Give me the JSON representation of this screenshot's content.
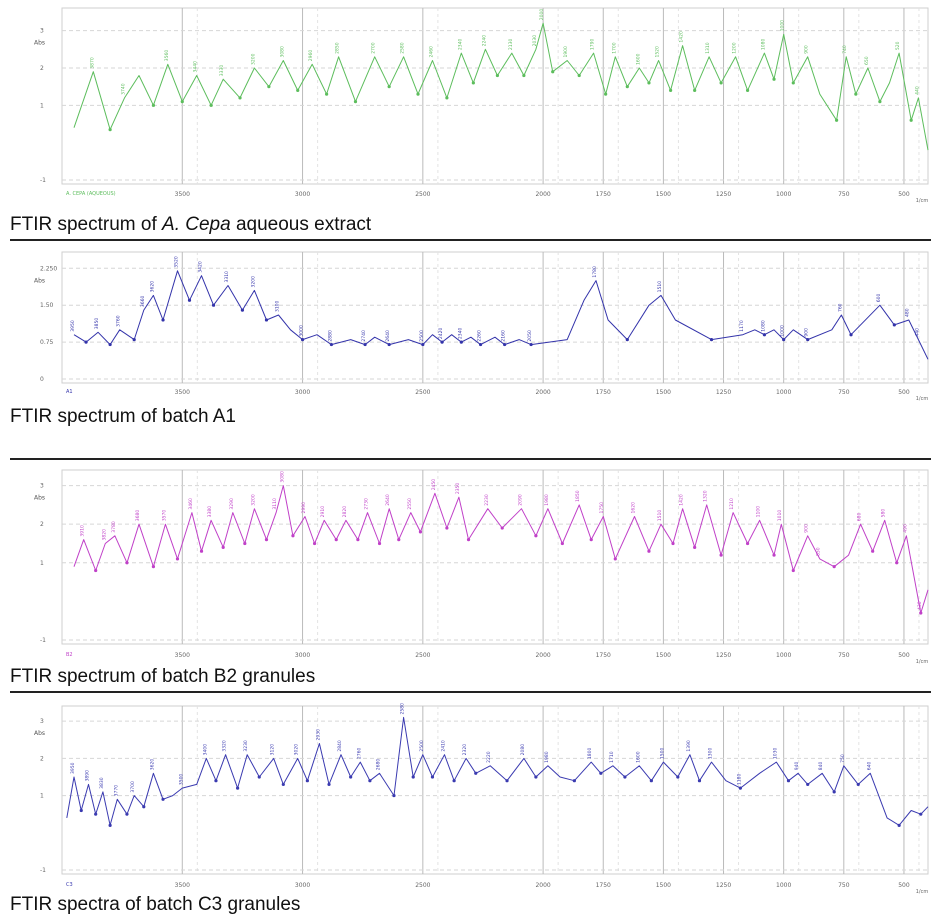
{
  "chart_data": [
    {
      "type": "line",
      "title": "",
      "caption": {
        "prefix": "FTIR spectrum of ",
        "species": "A. Cepa",
        "suffix": " aqueous extract"
      },
      "color": "#5cbd5c",
      "ylabel": "Abs",
      "yticks": [
        "3",
        "2",
        "1",
        "-1"
      ],
      "xticks": [
        "3500",
        "3000",
        "2500",
        "2000",
        "1750",
        "1500",
        "1250",
        "1000",
        "750",
        "500"
      ],
      "xunit": "1/cm",
      "legend": "A. CEPA (AQUEOUS)",
      "xlim": [
        4000,
        400
      ],
      "ylim": [
        -1,
        3.5
      ],
      "points": [
        [
          3950,
          0.4
        ],
        [
          3870,
          1.9
        ],
        [
          3800,
          0.35
        ],
        [
          3740,
          1.2
        ],
        [
          3680,
          1.8
        ],
        [
          3620,
          1.0
        ],
        [
          3560,
          2.1
        ],
        [
          3500,
          1.1
        ],
        [
          3440,
          1.8
        ],
        [
          3380,
          1.0
        ],
        [
          3330,
          1.7
        ],
        [
          3260,
          1.2
        ],
        [
          3200,
          2.0
        ],
        [
          3140,
          1.5
        ],
        [
          3080,
          2.2
        ],
        [
          3020,
          1.4
        ],
        [
          2960,
          2.1
        ],
        [
          2900,
          1.3
        ],
        [
          2850,
          2.3
        ],
        [
          2780,
          1.1
        ],
        [
          2700,
          2.3
        ],
        [
          2640,
          1.5
        ],
        [
          2580,
          2.3
        ],
        [
          2520,
          1.3
        ],
        [
          2460,
          2.2
        ],
        [
          2400,
          1.2
        ],
        [
          2340,
          2.4
        ],
        [
          2290,
          1.6
        ],
        [
          2240,
          2.5
        ],
        [
          2190,
          1.8
        ],
        [
          2130,
          2.4
        ],
        [
          2080,
          1.8
        ],
        [
          2030,
          2.5
        ],
        [
          2000,
          3.2
        ],
        [
          1960,
          1.9
        ],
        [
          1900,
          2.2
        ],
        [
          1850,
          1.8
        ],
        [
          1790,
          2.4
        ],
        [
          1740,
          1.3
        ],
        [
          1700,
          2.3
        ],
        [
          1650,
          1.5
        ],
        [
          1600,
          2.0
        ],
        [
          1560,
          1.6
        ],
        [
          1520,
          2.2
        ],
        [
          1470,
          1.4
        ],
        [
          1420,
          2.6
        ],
        [
          1370,
          1.4
        ],
        [
          1310,
          2.3
        ],
        [
          1260,
          1.6
        ],
        [
          1200,
          2.3
        ],
        [
          1150,
          1.4
        ],
        [
          1080,
          2.4
        ],
        [
          1040,
          1.7
        ],
        [
          1000,
          2.9
        ],
        [
          960,
          1.6
        ],
        [
          900,
          2.3
        ],
        [
          850,
          1.3
        ],
        [
          780,
          0.6
        ],
        [
          740,
          2.3
        ],
        [
          700,
          1.3
        ],
        [
          650,
          2.0
        ],
        [
          600,
          1.1
        ],
        [
          560,
          1.6
        ],
        [
          520,
          2.4
        ],
        [
          470,
          0.6
        ],
        [
          440,
          1.2
        ],
        [
          400,
          -0.2
        ]
      ],
      "labels": [
        3870,
        3740,
        3560,
        3440,
        3330,
        3200,
        3080,
        2960,
        2850,
        2700,
        2580,
        2460,
        2340,
        2240,
        2130,
        2030,
        2000,
        1900,
        1790,
        1700,
        1600,
        1520,
        1420,
        1310,
        1200,
        1080,
        1000,
        900,
        740,
        650,
        520,
        440
      ]
    },
    {
      "type": "line",
      "title": "",
      "caption": "FTIR spectrum of batch A1",
      "color": "#3333aa",
      "ylabel": "Abs",
      "yticks": [
        "2.250",
        "1.50",
        "0.75",
        "0"
      ],
      "xticks": [
        "3500",
        "3000",
        "2500",
        "2000",
        "1750",
        "1500",
        "1250",
        "1000",
        "750",
        "500"
      ],
      "xunit": "1/cm",
      "legend": "A1",
      "xlim": [
        4000,
        400
      ],
      "ylim": [
        0,
        2.5
      ],
      "points": [
        [
          3950,
          0.9
        ],
        [
          3900,
          0.75
        ],
        [
          3850,
          0.95
        ],
        [
          3800,
          0.7
        ],
        [
          3760,
          1.0
        ],
        [
          3700,
          0.8
        ],
        [
          3660,
          1.4
        ],
        [
          3620,
          1.7
        ],
        [
          3580,
          1.2
        ],
        [
          3520,
          2.2
        ],
        [
          3470,
          1.6
        ],
        [
          3420,
          2.1
        ],
        [
          3370,
          1.5
        ],
        [
          3310,
          1.9
        ],
        [
          3250,
          1.4
        ],
        [
          3200,
          1.8
        ],
        [
          3150,
          1.2
        ],
        [
          3100,
          1.3
        ],
        [
          3050,
          1.0
        ],
        [
          3000,
          0.8
        ],
        [
          2940,
          0.9
        ],
        [
          2880,
          0.7
        ],
        [
          2800,
          0.8
        ],
        [
          2740,
          0.7
        ],
        [
          2700,
          0.85
        ],
        [
          2640,
          0.7
        ],
        [
          2560,
          0.8
        ],
        [
          2500,
          0.7
        ],
        [
          2460,
          0.9
        ],
        [
          2420,
          0.75
        ],
        [
          2380,
          0.9
        ],
        [
          2340,
          0.75
        ],
        [
          2300,
          0.85
        ],
        [
          2260,
          0.7
        ],
        [
          2200,
          0.85
        ],
        [
          2160,
          0.7
        ],
        [
          2100,
          0.8
        ],
        [
          2050,
          0.7
        ],
        [
          1900,
          0.8
        ],
        [
          1830,
          1.6
        ],
        [
          1780,
          2.0
        ],
        [
          1730,
          1.2
        ],
        [
          1650,
          0.8
        ],
        [
          1560,
          1.5
        ],
        [
          1510,
          1.7
        ],
        [
          1450,
          1.2
        ],
        [
          1300,
          0.8
        ],
        [
          1170,
          0.9
        ],
        [
          1120,
          1.0
        ],
        [
          1080,
          0.9
        ],
        [
          1040,
          1.0
        ],
        [
          1000,
          0.8
        ],
        [
          960,
          1.0
        ],
        [
          900,
          0.8
        ],
        [
          800,
          1.0
        ],
        [
          760,
          1.3
        ],
        [
          720,
          0.9
        ],
        [
          600,
          1.5
        ],
        [
          540,
          1.1
        ],
        [
          480,
          1.2
        ],
        [
          440,
          0.8
        ],
        [
          400,
          0.4
        ]
      ],
      "labels": [
        3950,
        3850,
        3760,
        3660,
        3620,
        3520,
        3420,
        3310,
        3200,
        3100,
        3000,
        2880,
        2740,
        2640,
        2500,
        2420,
        2340,
        2260,
        2160,
        2050,
        1780,
        1510,
        1170,
        1080,
        1000,
        900,
        760,
        600,
        480,
        440
      ]
    },
    {
      "type": "line",
      "title": "",
      "caption": "FTIR  spectrum of batch B2 granules",
      "color": "#c040c8",
      "ylabel": "Abs",
      "yticks": [
        "3",
        "2",
        "1",
        "-1"
      ],
      "xticks": [
        "3500",
        "3000",
        "2500",
        "2000",
        "1750",
        "1500",
        "1250",
        "1000",
        "750",
        "500"
      ],
      "xunit": "1/cm",
      "legend": "B2",
      "xlim": [
        4000,
        400
      ],
      "ylim": [
        -1,
        3.3
      ],
      "points": [
        [
          3950,
          0.9
        ],
        [
          3910,
          1.6
        ],
        [
          3860,
          0.8
        ],
        [
          3820,
          1.5
        ],
        [
          3780,
          1.7
        ],
        [
          3730,
          1.0
        ],
        [
          3680,
          2.0
        ],
        [
          3620,
          0.9
        ],
        [
          3570,
          2.0
        ],
        [
          3520,
          1.1
        ],
        [
          3460,
          2.3
        ],
        [
          3420,
          1.3
        ],
        [
          3380,
          2.1
        ],
        [
          3330,
          1.4
        ],
        [
          3290,
          2.3
        ],
        [
          3240,
          1.5
        ],
        [
          3200,
          2.4
        ],
        [
          3150,
          1.6
        ],
        [
          3110,
          2.3
        ],
        [
          3080,
          3.0
        ],
        [
          3040,
          1.7
        ],
        [
          2990,
          2.2
        ],
        [
          2950,
          1.5
        ],
        [
          2910,
          2.1
        ],
        [
          2860,
          1.6
        ],
        [
          2820,
          2.1
        ],
        [
          2770,
          1.6
        ],
        [
          2730,
          2.3
        ],
        [
          2680,
          1.5
        ],
        [
          2640,
          2.4
        ],
        [
          2600,
          1.6
        ],
        [
          2550,
          2.3
        ],
        [
          2510,
          1.8
        ],
        [
          2450,
          2.8
        ],
        [
          2400,
          1.9
        ],
        [
          2350,
          2.7
        ],
        [
          2310,
          1.6
        ],
        [
          2230,
          2.4
        ],
        [
          2170,
          1.9
        ],
        [
          2090,
          2.4
        ],
        [
          2030,
          1.7
        ],
        [
          1980,
          2.4
        ],
        [
          1920,
          1.5
        ],
        [
          1850,
          2.5
        ],
        [
          1800,
          1.6
        ],
        [
          1750,
          2.2
        ],
        [
          1700,
          1.1
        ],
        [
          1620,
          2.2
        ],
        [
          1560,
          1.3
        ],
        [
          1510,
          2.0
        ],
        [
          1460,
          1.5
        ],
        [
          1420,
          2.4
        ],
        [
          1370,
          1.4
        ],
        [
          1320,
          2.5
        ],
        [
          1260,
          1.2
        ],
        [
          1210,
          2.3
        ],
        [
          1150,
          1.5
        ],
        [
          1100,
          2.1
        ],
        [
          1040,
          1.2
        ],
        [
          1010,
          2.0
        ],
        [
          960,
          0.8
        ],
        [
          900,
          1.7
        ],
        [
          850,
          1.1
        ],
        [
          790,
          0.9
        ],
        [
          730,
          1.2
        ],
        [
          680,
          2.0
        ],
        [
          630,
          1.3
        ],
        [
          580,
          2.1
        ],
        [
          530,
          1.0
        ],
        [
          490,
          1.7
        ],
        [
          430,
          -0.3
        ],
        [
          400,
          0.3
        ]
      ],
      "labels": [
        3910,
        3820,
        3780,
        3680,
        3570,
        3460,
        3380,
        3290,
        3200,
        3110,
        3080,
        2990,
        2910,
        2820,
        2730,
        2640,
        2550,
        2450,
        2350,
        2230,
        2090,
        1980,
        1850,
        1750,
        1620,
        1510,
        1420,
        1320,
        1210,
        1100,
        1010,
        900,
        850,
        680,
        580,
        490,
        430
      ]
    },
    {
      "type": "line",
      "title": "",
      "caption": "FTIR  spectra of batch C3 granules",
      "color": "#3a3ab0",
      "ylabel": "Abs",
      "yticks": [
        "3",
        "2",
        "1",
        "-1"
      ],
      "xticks": [
        "3500",
        "3000",
        "2500",
        "2000",
        "1750",
        "1500",
        "1250",
        "1000",
        "750",
        "500"
      ],
      "xunit": "1/cm",
      "legend": "C3",
      "xlim": [
        4000,
        400
      ],
      "ylim": [
        -1,
        3.3
      ],
      "points": [
        [
          3980,
          0.4
        ],
        [
          3950,
          1.5
        ],
        [
          3920,
          0.6
        ],
        [
          3890,
          1.3
        ],
        [
          3860,
          0.5
        ],
        [
          3830,
          1.1
        ],
        [
          3800,
          0.2
        ],
        [
          3770,
          0.9
        ],
        [
          3730,
          0.5
        ],
        [
          3700,
          1.0
        ],
        [
          3660,
          0.7
        ],
        [
          3620,
          1.6
        ],
        [
          3580,
          0.9
        ],
        [
          3540,
          1.0
        ],
        [
          3500,
          1.2
        ],
        [
          3440,
          1.3
        ],
        [
          3400,
          2.0
        ],
        [
          3360,
          1.4
        ],
        [
          3320,
          2.1
        ],
        [
          3270,
          1.2
        ],
        [
          3230,
          2.1
        ],
        [
          3180,
          1.5
        ],
        [
          3120,
          2.0
        ],
        [
          3080,
          1.3
        ],
        [
          3020,
          2.0
        ],
        [
          2980,
          1.4
        ],
        [
          2930,
          2.4
        ],
        [
          2890,
          1.3
        ],
        [
          2840,
          2.1
        ],
        [
          2800,
          1.5
        ],
        [
          2760,
          1.9
        ],
        [
          2720,
          1.4
        ],
        [
          2680,
          1.6
        ],
        [
          2620,
          1.0
        ],
        [
          2580,
          3.1
        ],
        [
          2540,
          1.5
        ],
        [
          2500,
          2.1
        ],
        [
          2460,
          1.5
        ],
        [
          2410,
          2.1
        ],
        [
          2370,
          1.4
        ],
        [
          2320,
          2.0
        ],
        [
          2280,
          1.6
        ],
        [
          2220,
          1.8
        ],
        [
          2150,
          1.4
        ],
        [
          2080,
          2.0
        ],
        [
          2030,
          1.5
        ],
        [
          1980,
          1.8
        ],
        [
          1930,
          1.5
        ],
        [
          1870,
          1.4
        ],
        [
          1800,
          1.9
        ],
        [
          1760,
          1.6
        ],
        [
          1710,
          1.8
        ],
        [
          1660,
          1.5
        ],
        [
          1600,
          1.8
        ],
        [
          1550,
          1.4
        ],
        [
          1500,
          1.9
        ],
        [
          1440,
          1.5
        ],
        [
          1390,
          2.1
        ],
        [
          1350,
          1.4
        ],
        [
          1300,
          1.9
        ],
        [
          1240,
          1.4
        ],
        [
          1180,
          1.2
        ],
        [
          1100,
          1.6
        ],
        [
          1030,
          1.9
        ],
        [
          980,
          1.4
        ],
        [
          940,
          1.6
        ],
        [
          900,
          1.3
        ],
        [
          840,
          1.6
        ],
        [
          790,
          1.1
        ],
        [
          750,
          1.8
        ],
        [
          690,
          1.3
        ],
        [
          640,
          1.6
        ],
        [
          570,
          0.4
        ],
        [
          520,
          0.2
        ],
        [
          470,
          0.6
        ],
        [
          430,
          0.5
        ],
        [
          400,
          0.7
        ]
      ],
      "labels": [
        3950,
        3890,
        3830,
        3770,
        3700,
        3620,
        3500,
        3400,
        3320,
        3230,
        3120,
        3020,
        2930,
        2840,
        2760,
        2680,
        2580,
        2500,
        2410,
        2320,
        2220,
        2080,
        1980,
        1800,
        1710,
        1600,
        1500,
        1390,
        1300,
        1180,
        1030,
        940,
        840,
        750,
        640
      ]
    }
  ]
}
